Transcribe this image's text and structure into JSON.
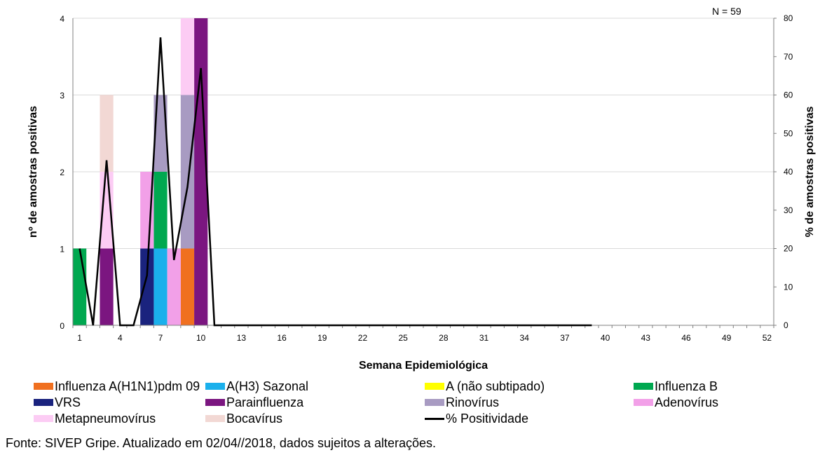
{
  "chart_data": {
    "type": "bar",
    "subtype": "stacked bar with line on secondary axis",
    "n_label": "N = 59",
    "xlabel": "Semana Epidemiológica",
    "ylabel": "nº de amostras positivas",
    "y2label": "% de amostras positivas",
    "x": [
      1,
      2,
      3,
      4,
      5,
      6,
      7,
      8,
      9,
      10,
      11,
      12,
      13,
      14,
      15,
      16,
      17,
      18,
      19,
      20,
      21,
      22,
      23,
      24,
      25,
      26,
      27,
      28,
      29,
      30,
      31,
      32,
      33,
      34,
      35,
      36,
      37,
      38,
      39,
      40,
      41,
      42,
      43,
      44,
      45,
      46,
      47,
      48,
      49,
      50,
      51,
      52
    ],
    "x_tick_labels": [
      "1",
      "4",
      "7",
      "10",
      "13",
      "16",
      "19",
      "22",
      "25",
      "28",
      "31",
      "34",
      "37",
      "40",
      "43",
      "46",
      "49",
      "52"
    ],
    "ylim": [
      0,
      4
    ],
    "y_ticks": [
      "0",
      "1",
      "2",
      "3",
      "4"
    ],
    "y2lim": [
      0,
      80
    ],
    "y2_ticks": [
      "0",
      "10",
      "20",
      "30",
      "40",
      "50",
      "60",
      "70",
      "80"
    ],
    "grid": "horizontal",
    "legend_position": "bottom",
    "series": [
      {
        "name": "Influenza A(H1N1)pdm 09",
        "color": "#F07020",
        "values": {
          "9": 1
        }
      },
      {
        "name": "A(H3) Sazonal",
        "color": "#1AB0EC",
        "values": {
          "7": 1
        }
      },
      {
        "name": "A (não subtipado)",
        "color": "#FFFF00",
        "values": {}
      },
      {
        "name": "Influenza B",
        "color": "#00A850",
        "values": {
          "1": 1,
          "7": 1
        }
      },
      {
        "name": "VRS",
        "color": "#1A237E",
        "values": {
          "6": 1
        }
      },
      {
        "name": "Parainfluenza",
        "color": "#7B1680",
        "values": {
          "3": 1,
          "10": 4
        }
      },
      {
        "name": "Rinovírus",
        "color": "#A89BC2",
        "values": {
          "7": 1,
          "9": 2
        }
      },
      {
        "name": "Adenovírus",
        "color": "#F2A0E8",
        "values": {
          "6": 1,
          "8": 1
        }
      },
      {
        "name": "Metapneumovírus",
        "color": "#FCCCF4",
        "values": {
          "3": 1,
          "9": 1
        }
      },
      {
        "name": "Bocavírus",
        "color": "#F2D8D4",
        "values": {
          "3": 1
        }
      }
    ],
    "line": {
      "name": "% Positividade",
      "color": "#000000",
      "axis": "right",
      "points": [
        [
          1,
          20
        ],
        [
          2,
          0
        ],
        [
          3,
          43
        ],
        [
          4,
          0
        ],
        [
          5,
          0
        ],
        [
          6,
          13
        ],
        [
          7,
          75
        ],
        [
          8,
          17
        ],
        [
          9,
          36
        ],
        [
          10,
          67
        ],
        [
          11,
          0
        ],
        [
          12,
          0
        ],
        [
          39,
          0
        ]
      ]
    }
  },
  "source_text": "Fonte: SIVEP Gripe. Atualizado em 02/04//2018, dados sujeitos a alterações."
}
